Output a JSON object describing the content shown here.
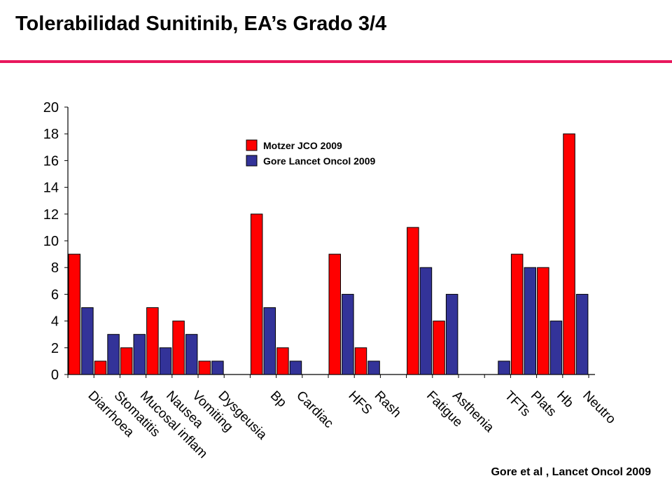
{
  "slide": {
    "title": "Tolerabilidad Sunitinib, EA’s Grado 3/4",
    "citation": "Gore et al , Lancet Oncol 2009",
    "accent_color": "#e8175d"
  },
  "chart_data": {
    "type": "bar",
    "title": "",
    "xlabel": "",
    "ylabel": "",
    "ylim": [
      0,
      20
    ],
    "yticks": [
      0,
      2,
      4,
      6,
      8,
      10,
      12,
      14,
      16,
      18,
      20
    ],
    "grid": false,
    "legend_position": "top-center",
    "categories": [
      "Diarrhoea",
      "Stomatitis",
      "Mucosal inflam",
      "Nausea",
      "Vomiting",
      "Dysgeusia",
      "Bp",
      "Cardiac",
      "HFS",
      "Rash",
      "Fatigue",
      "Asthenia",
      "TFTs",
      "Plats",
      "Hb",
      "Neutro"
    ],
    "series": [
      {
        "name": "Motzer JCO 2009",
        "color": "#ff0000",
        "values": [
          9,
          1,
          2,
          5,
          4,
          1,
          12,
          2,
          9,
          2,
          11,
          4,
          0,
          9,
          8,
          18
        ]
      },
      {
        "name": "Gore Lancet Oncol 2009",
        "color": "#333399",
        "values": [
          5,
          3,
          3,
          2,
          3,
          1,
          5,
          1,
          6,
          1,
          8,
          6,
          1,
          8,
          4,
          6
        ]
      }
    ]
  }
}
